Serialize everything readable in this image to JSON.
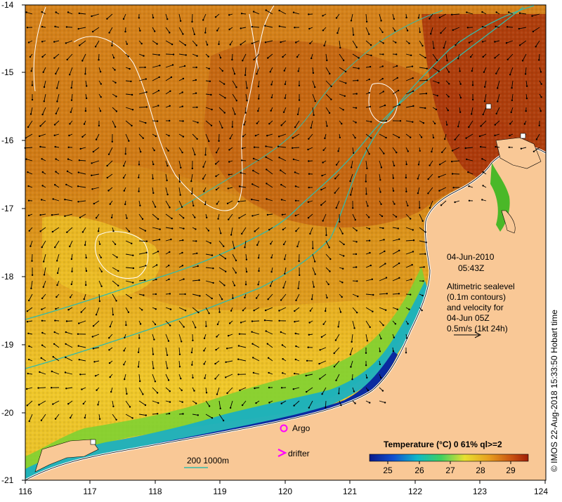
{
  "map": {
    "date_label": "04-Jun-2010",
    "time_label": "05:43Z",
    "altimetry_note": [
      "Altimetric sealevel",
      "(0.1m contours)",
      "and velocity for",
      "04-Jun 05Z",
      "0.5m/s (1kt 24h)"
    ],
    "credit": "© IMOS 22-Aug-2018 15:33:50 Hobart time",
    "argo_label": "Argo",
    "drifter_label": "drifter",
    "isobath_label": "200  1000m",
    "colorbar_title": "Temperature (°C) 0 61% ql>=2",
    "colorbar_ticks": [
      "25",
      "26",
      "27",
      "28",
      "29"
    ],
    "y_ticks": [
      "-14",
      "-15",
      "-16",
      "-17",
      "-18",
      "-19",
      "-20",
      "-21"
    ],
    "x_ticks": [
      "116",
      "117",
      "118",
      "119",
      "120",
      "121",
      "122",
      "123",
      "124"
    ],
    "colors": {
      "land": "#f9c896",
      "ocean_warm": "#c8620c",
      "ocean_hot": "#a52a0a",
      "ocean_mid": "#e4a21a",
      "ocean_cool": "#f0d22a",
      "coastal_green": "#7cd632",
      "coastal_cyan": "#1fb6c0",
      "coastal_blue": "#0a2aa0",
      "contour": "#ffffff",
      "isobath": "#33bbaa",
      "argo": "#ff00ff"
    }
  }
}
